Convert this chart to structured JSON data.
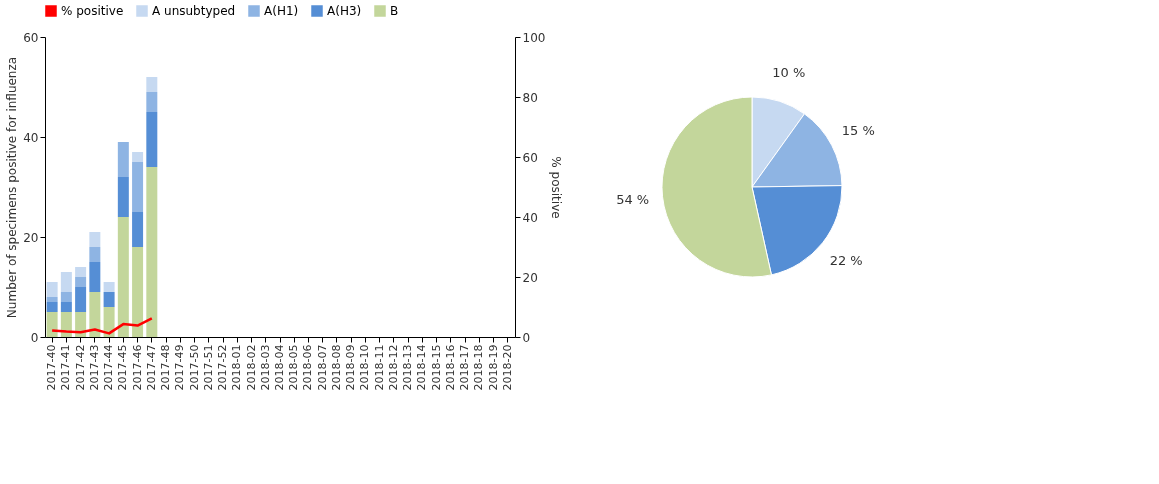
{
  "chart_data": [
    {
      "type": "bar",
      "stacked": true,
      "ylabel": "Number of specimens positive for influenza",
      "y2label": "% positive",
      "categories": [
        "2017-40",
        "2017-41",
        "2017-42",
        "2017-43",
        "2017-44",
        "2017-45",
        "2017-46",
        "2017-47",
        "2017-48",
        "2017-49",
        "2017-50",
        "2017-51",
        "2017-52",
        "2018-01",
        "2018-02",
        "2018-03",
        "2018-04",
        "2018-05",
        "2018-06",
        "2018-07",
        "2018-08",
        "2018-09",
        "2018-10",
        "2018-11",
        "2018-12",
        "2018-13",
        "2018-14",
        "2018-15",
        "2018-16",
        "2018-17",
        "2018-18",
        "2018-19",
        "2018-20"
      ],
      "series": [
        {
          "name": "B",
          "color": "#c3d69b",
          "values": [
            5,
            5,
            5,
            9,
            6,
            24,
            18,
            34,
            null,
            null,
            null,
            null,
            null,
            null,
            null,
            null,
            null,
            null,
            null,
            null,
            null,
            null,
            null,
            null,
            null,
            null,
            null,
            null,
            null,
            null,
            null,
            null,
            null
          ]
        },
        {
          "name": "A(H3)",
          "color": "#558ed5",
          "values": [
            2,
            2,
            5,
            6,
            3,
            8,
            7,
            11,
            null,
            null,
            null,
            null,
            null,
            null,
            null,
            null,
            null,
            null,
            null,
            null,
            null,
            null,
            null,
            null,
            null,
            null,
            null,
            null,
            null,
            null,
            null,
            null,
            null
          ]
        },
        {
          "name": "A(H1)",
          "color": "#8eb4e3",
          "values": [
            1,
            2,
            2,
            3,
            0,
            7,
            10,
            4,
            null,
            null,
            null,
            null,
            null,
            null,
            null,
            null,
            null,
            null,
            null,
            null,
            null,
            null,
            null,
            null,
            null,
            null,
            null,
            null,
            null,
            null,
            null,
            null,
            null
          ]
        },
        {
          "name": "A unsubtyped",
          "color": "#c6d9f1",
          "values": [
            3,
            4,
            2,
            3,
            2,
            0,
            2,
            3,
            null,
            null,
            null,
            null,
            null,
            null,
            null,
            null,
            null,
            null,
            null,
            null,
            null,
            null,
            null,
            null,
            null,
            null,
            null,
            null,
            null,
            null,
            null,
            null,
            null
          ]
        },
        {
          "name": "% positive",
          "type": "line",
          "axis": "y2",
          "color": "#ff0000",
          "values": [
            2.2,
            1.8,
            1.6,
            2.5,
            1.2,
            4.3,
            3.8,
            6.2,
            null,
            null,
            null,
            null,
            null,
            null,
            null,
            null,
            null,
            null,
            null,
            null,
            null,
            null,
            null,
            null,
            null,
            null,
            null,
            null,
            null,
            null,
            null,
            null,
            null
          ]
        }
      ],
      "ylim": [
        0,
        60
      ],
      "yticks": [
        0,
        20,
        40,
        60
      ],
      "y2lim": [
        0,
        100
      ],
      "y2ticks": [
        0,
        20,
        40,
        60,
        80,
        100
      ],
      "grid": false,
      "legend": "top"
    },
    {
      "type": "pie",
      "categories": [
        null,
        null,
        null,
        null
      ],
      "values": [
        10,
        15,
        22,
        54
      ],
      "colors": [
        "#c6d9f1",
        "#8eb4e3",
        "#558ed5",
        "#c3d69b"
      ],
      "value_labels": [
        "10 %",
        "15 %",
        "22 %",
        "54 %"
      ],
      "legend": false
    }
  ]
}
